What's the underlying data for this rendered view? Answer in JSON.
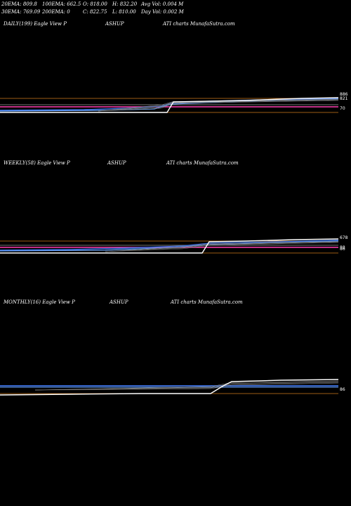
{
  "header": {
    "row1": [
      "20EMA: 809.8",
      "100EMA: 662.5",
      "O: 818.00",
      "H: 832.20",
      "Avg Vol: 0.004 M"
    ],
    "row2": [
      "30EMA: 769.09",
      "200EMA: 0",
      "C: 822.75",
      "L: 810.00",
      "Day Vol: 0.002 M"
    ]
  },
  "panels": [
    {
      "title": "DAILY(199) Eagle  View  P",
      "symbol": "ASHUP",
      "source": "ATI charts MunafaSutra.com"
    },
    {
      "title": "WEEKLY(58) Eagle  View  P",
      "symbol": "ASHUP",
      "source": "ATI charts MunafaSutra.com"
    },
    {
      "title": "MONTHLY(16) Eagle  View  P",
      "symbol": "ASHUP",
      "source": "ATI charts MunafaSutra.com"
    }
  ],
  "chart_data": [
    {
      "type": "line",
      "name": "daily",
      "axis_labels": [
        "886",
        "821",
        "70"
      ],
      "colors": {
        "price": "#ffffff",
        "ema20": "#3b6fe0",
        "ema30": "#6aa7ff",
        "ema100": "#ff3fb2",
        "ema200": "#ff3fb2",
        "hline": "#d07a1a"
      }
    },
    {
      "type": "line",
      "name": "weekly",
      "axis_labels": [
        "678",
        "88",
        "86"
      ],
      "colors": {
        "price": "#ffffff",
        "ema20": "#3b6fe0",
        "ema30": "#6aa7ff",
        "ema100": "#ff3fb2",
        "hline": "#d07a1a"
      }
    },
    {
      "type": "line",
      "name": "monthly",
      "axis_labels": [
        "86"
      ],
      "colors": {
        "price": "#ffffff",
        "ema20": "#3b6fe0",
        "ema30": "#6aa7ff",
        "hline": "#d07a1a"
      }
    }
  ]
}
